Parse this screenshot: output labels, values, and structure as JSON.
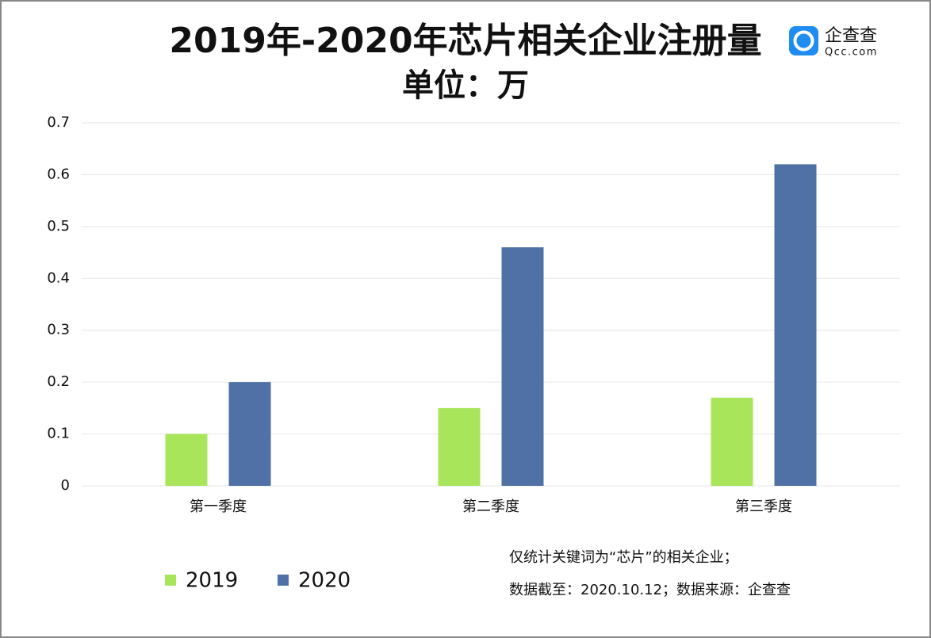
{
  "chart_data": {
    "type": "bar",
    "title": "2019年-2020年芯片相关企业注册量",
    "subtitle": "单位：万",
    "categories": [
      "第一季度",
      "第二季度",
      "第三季度"
    ],
    "series": [
      {
        "name": "2019",
        "color": "#a9e55a",
        "values": [
          0.1,
          0.15,
          0.17
        ]
      },
      {
        "name": "2020",
        "color": "#4f71a6",
        "values": [
          0.2,
          0.46,
          0.62
        ]
      }
    ],
    "ylim": [
      0,
      0.7
    ],
    "yticks": [
      0,
      0.1,
      0.2,
      0.3,
      0.4,
      0.5,
      0.6,
      0.7
    ],
    "grid": true,
    "legend": "bottom-left"
  },
  "logo": {
    "name": "企查查",
    "site": "Qcc.com"
  },
  "notes": [
    "仅统计关键词为“芯片”的相关企业；",
    "数据截至：2020.10.12；数据来源：企查查"
  ]
}
